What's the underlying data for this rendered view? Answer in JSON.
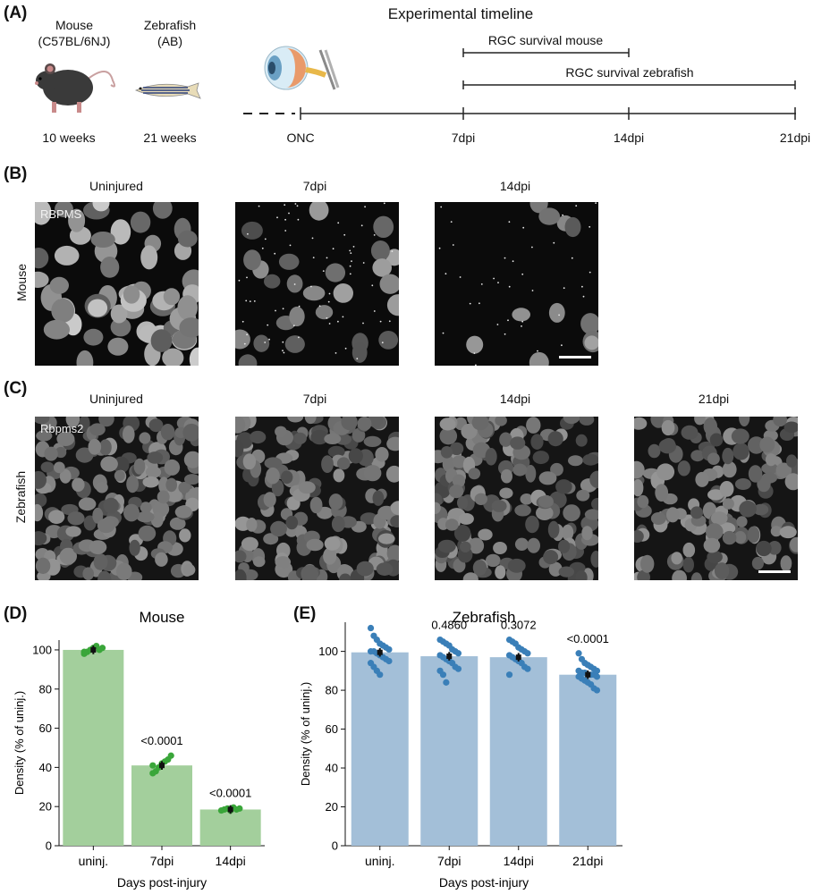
{
  "panel_a": {
    "label": "(A)",
    "title": "Experimental timeline",
    "mouse": {
      "name": "Mouse",
      "strain": "(C57BL/6NJ)",
      "age": "10 weeks"
    },
    "zebrafish": {
      "name": "Zebrafish",
      "strain": "(AB)",
      "age": "21 weeks"
    },
    "timeline_ticks": [
      "ONC",
      "7dpi",
      "14dpi",
      "21dpi"
    ],
    "bars": [
      {
        "label": "RGC survival mouse",
        "from": "7dpi",
        "to": "14dpi"
      },
      {
        "label": "RGC survival zebrafish",
        "from": "7dpi",
        "to": "21dpi"
      }
    ]
  },
  "panel_b": {
    "label": "(B)",
    "row_label": "Mouse",
    "stain": "RBPMS",
    "columns": [
      "Uninjured",
      "7dpi",
      "14dpi"
    ]
  },
  "panel_c": {
    "label": "(C)",
    "row_label": "Zebrafish",
    "stain": "Rbpms2",
    "columns": [
      "Uninjured",
      "7dpi",
      "14dpi",
      "21dpi"
    ]
  },
  "chart_data": [
    {
      "panel": "(D)",
      "type": "bar",
      "title": "Mouse",
      "xlabel": "Days post-injury",
      "ylabel": "Density (% of uninj.)",
      "categories": [
        "uninj.",
        "7dpi",
        "14dpi"
      ],
      "values": [
        100,
        41,
        18.5
      ],
      "ylim": [
        0,
        105
      ],
      "yticks": [
        0,
        20,
        40,
        60,
        80,
        100
      ],
      "pvalues": [
        "",
        "<0.0001",
        "<0.0001"
      ],
      "bar_color": "#a3cf9c",
      "point_color": "#3aa63a",
      "points": [
        [
          98,
          99,
          100,
          101,
          102,
          100,
          101,
          99
        ],
        [
          37,
          38,
          40,
          42,
          43,
          44,
          46,
          41
        ],
        [
          18,
          18.5,
          19,
          18,
          19.5,
          18.5,
          19
        ]
      ]
    },
    {
      "panel": "(E)",
      "type": "bar",
      "title": "Zebrafish",
      "xlabel": "Days post-injury",
      "ylabel": "Density (% of uninj.)",
      "categories": [
        "uninj.",
        "7dpi",
        "14dpi",
        "21dpi"
      ],
      "values": [
        99.5,
        97.5,
        97,
        88
      ],
      "ylim": [
        0,
        115
      ],
      "yticks": [
        0,
        20,
        40,
        60,
        80,
        100
      ],
      "pvalues": [
        "",
        "0.4860",
        "0.3072",
        "<0.0001"
      ],
      "bar_color": "#a3bfd8",
      "point_color": "#3a7fb8",
      "points": [
        [
          112,
          108,
          106,
          104,
          103,
          102,
          101,
          100,
          100,
          99,
          98,
          97,
          96,
          95,
          94,
          92,
          90,
          88
        ],
        [
          106,
          105,
          104,
          103,
          101,
          100,
          99,
          98,
          97,
          96,
          95,
          94,
          92,
          91,
          90,
          88,
          84
        ],
        [
          106,
          105,
          104,
          102,
          101,
          100,
          99,
          98,
          97,
          96,
          95,
          94,
          92,
          91,
          88
        ],
        [
          99,
          96,
          94,
          93,
          92,
          91,
          90,
          90,
          89,
          89,
          88,
          88,
          88,
          87,
          87,
          86,
          85,
          84,
          83,
          81,
          80
        ]
      ]
    }
  ]
}
